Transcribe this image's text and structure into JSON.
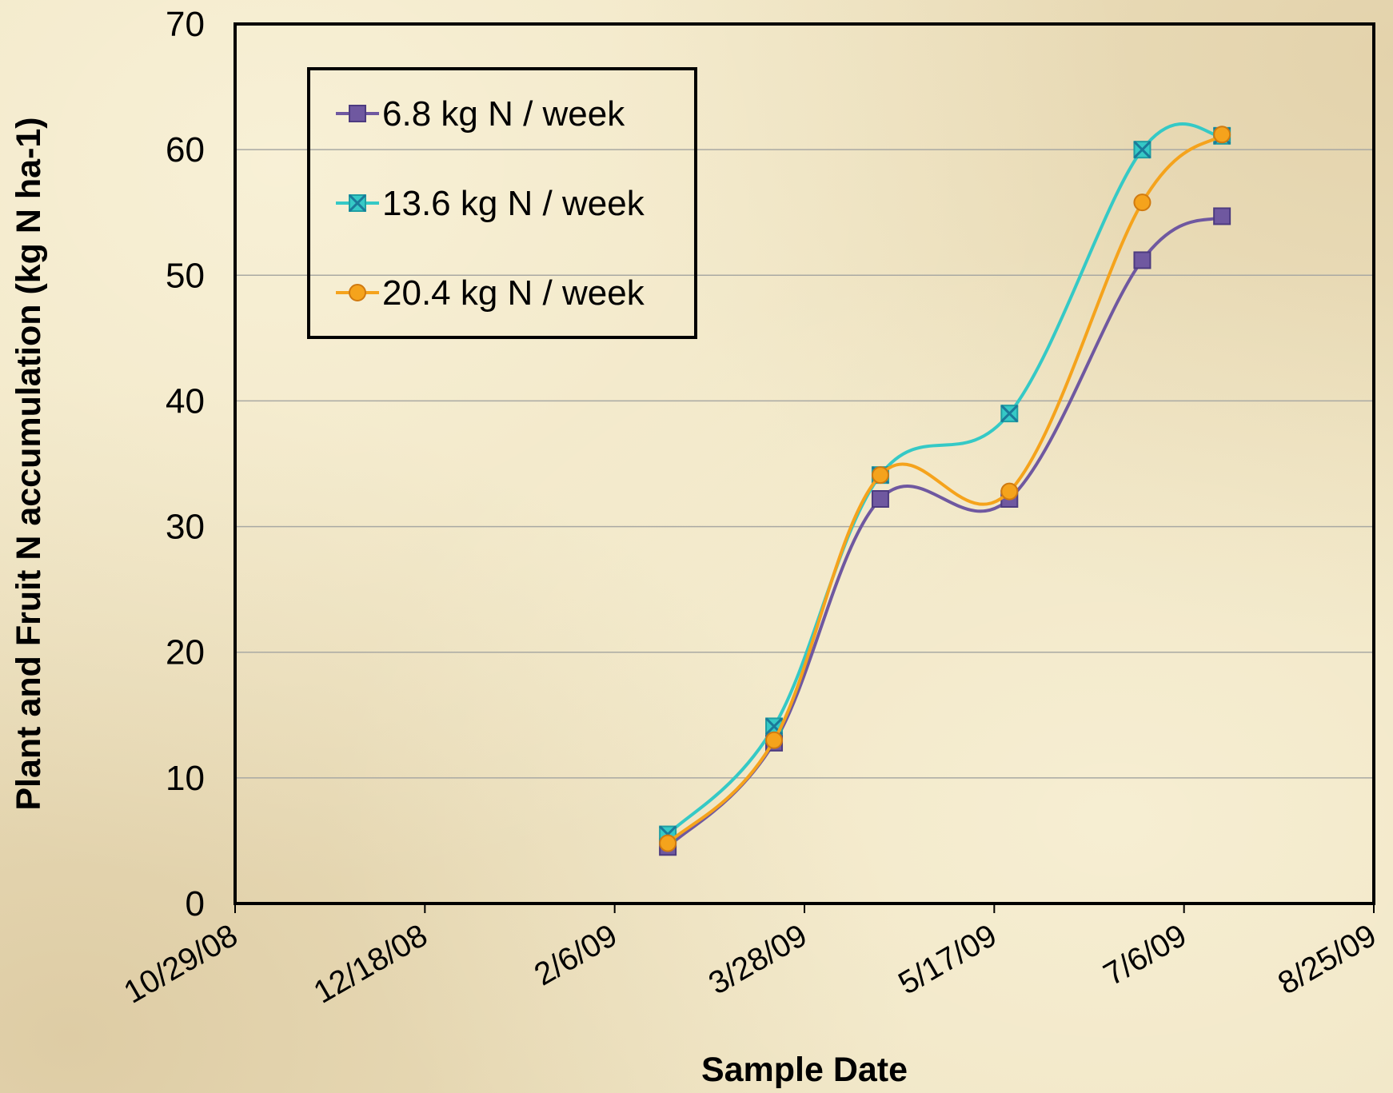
{
  "chart_data": {
    "type": "line",
    "xlabel": "Sample Date",
    "ylabel": "Plant and Fruit N accumulation (kg N ha-1)",
    "ylim": [
      0,
      70
    ],
    "yticks": [
      0,
      10,
      20,
      30,
      40,
      50,
      60,
      70
    ],
    "xlim": [
      "2008-10-29",
      "2009-08-25"
    ],
    "xtick_labels": [
      "10/29/08",
      "12/18/08",
      "2/6/09",
      "3/28/09",
      "5/17/09",
      "7/6/09",
      "8/25/09"
    ],
    "xtick_dates": [
      "2008-10-29",
      "2008-12-18",
      "2009-02-06",
      "2009-03-28",
      "2009-05-17",
      "2009-07-06",
      "2009-08-25"
    ],
    "grid": "horizontal",
    "legend": "top-left",
    "smooth": true,
    "x": [
      "2009-02-20",
      "2009-03-20",
      "2009-04-17",
      "2009-05-21",
      "2009-06-25",
      "2009-07-16"
    ],
    "series": [
      {
        "name": "6.8 kg N / week",
        "color": "#6f58a0",
        "marker": "square",
        "values": [
          4.5,
          12.8,
          32.2,
          32.2,
          51.2,
          54.7
        ]
      },
      {
        "name": "13.6 kg N / week",
        "color": "#35c9c6",
        "marker": "square-x",
        "values": [
          5.5,
          14.1,
          34.1,
          39.0,
          60.0,
          61.1
        ]
      },
      {
        "name": "20.4 kg N / week",
        "color": "#f5a31c",
        "marker": "circle",
        "values": [
          4.8,
          13.0,
          34.1,
          32.8,
          55.8,
          61.2
        ]
      }
    ]
  }
}
